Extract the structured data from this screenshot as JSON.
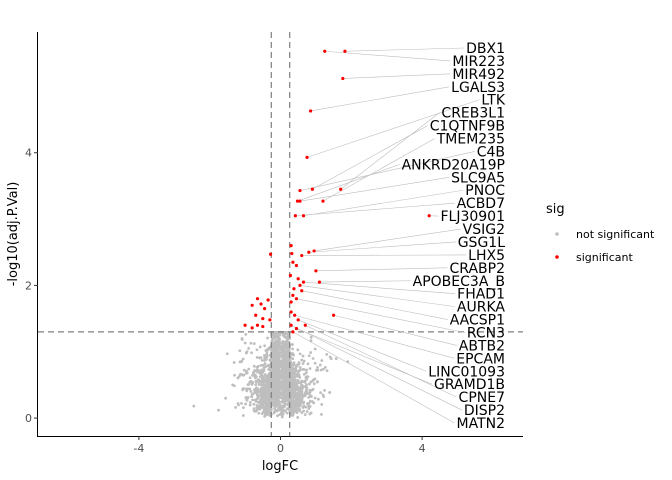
{
  "chart_data": {
    "type": "scatter",
    "title": "",
    "xlabel": "logFC",
    "ylabel": "-log10(adj.P.Val)",
    "xlim": [
      -6.85,
      6.85
    ],
    "ylim": [
      -0.27,
      5.82
    ],
    "x_ticks": [
      -4,
      0,
      4
    ],
    "y_ticks": [
      0,
      2,
      4
    ],
    "x_tick_labels": [
      "-4",
      "0",
      "4"
    ],
    "y_tick_labels": [
      "0",
      "2",
      "4"
    ],
    "grid": false,
    "reference_lines": {
      "vertical_x": [
        -0.26,
        0.26
      ],
      "horizontal_y": 1.3,
      "style": "dashed"
    },
    "legend": {
      "title": "sig",
      "placement": "right",
      "entries": [
        {
          "label": "not significant",
          "color": "#bebebe"
        },
        {
          "label": "significant",
          "color": "#ff0000"
        }
      ]
    },
    "series": [
      {
        "name": "significant",
        "color": "#ff0000",
        "points": [
          [
            1.25,
            5.53
          ],
          [
            1.82,
            5.53
          ],
          [
            1.76,
            5.12
          ],
          [
            0.85,
            4.63
          ],
          [
            0.75,
            3.93
          ],
          [
            1.7,
            3.45
          ],
          [
            0.9,
            3.45
          ],
          [
            0.55,
            3.43
          ],
          [
            1.2,
            3.27
          ],
          [
            0.48,
            3.27
          ],
          [
            0.55,
            3.27
          ],
          [
            0.65,
            3.05
          ],
          [
            0.42,
            3.05
          ],
          [
            4.2,
            3.05
          ],
          [
            0.3,
            2.6
          ],
          [
            0.32,
            2.48
          ],
          [
            0.95,
            2.52
          ],
          [
            0.8,
            2.5
          ],
          [
            0.6,
            2.45
          ],
          [
            -0.28,
            2.47
          ],
          [
            0.35,
            2.35
          ],
          [
            1.0,
            2.22
          ],
          [
            0.45,
            2.3
          ],
          [
            0.28,
            2.15
          ],
          [
            0.5,
            2.1
          ],
          [
            1.1,
            2.05
          ],
          [
            0.65,
            2.05
          ],
          [
            0.55,
            2.0
          ],
          [
            0.38,
            1.95
          ],
          [
            0.35,
            1.85
          ],
          [
            0.6,
            1.92
          ],
          [
            0.45,
            1.8
          ],
          [
            0.3,
            1.75
          ],
          [
            0.3,
            1.6
          ],
          [
            0.4,
            1.55
          ],
          [
            0.5,
            1.48
          ],
          [
            0.3,
            1.4
          ],
          [
            0.45,
            1.35
          ],
          [
            1.5,
            1.55
          ],
          [
            0.7,
            1.4
          ],
          [
            0.35,
            1.3
          ],
          [
            -0.55,
            1.72
          ],
          [
            -0.65,
            1.8
          ],
          [
            -0.35,
            1.78
          ],
          [
            -0.8,
            1.7
          ],
          [
            -0.45,
            1.65
          ],
          [
            -0.7,
            1.55
          ],
          [
            -0.5,
            1.5
          ],
          [
            -0.3,
            1.48
          ],
          [
            -0.65,
            1.4
          ],
          [
            -0.5,
            1.38
          ],
          [
            -1.0,
            1.4
          ],
          [
            -0.8,
            1.36
          ]
        ]
      },
      {
        "name": "not significant",
        "color": "#bebebe",
        "points": []
      }
    ],
    "gene_labels": [
      {
        "label": "DBX1",
        "point": [
          1.82,
          5.53
        ]
      },
      {
        "label": "MIR223",
        "point": [
          1.25,
          5.53
        ]
      },
      {
        "label": "MIR492",
        "point": [
          1.76,
          5.12
        ]
      },
      {
        "label": "LGALS3",
        "point": [
          0.85,
          4.63
        ]
      },
      {
        "label": "LTK",
        "point": [
          0.75,
          3.93
        ]
      },
      {
        "label": "CREB3L1",
        "point": [
          1.7,
          3.45
        ]
      },
      {
        "label": "C1QTNF9B",
        "point": [
          0.9,
          3.45
        ]
      },
      {
        "label": "TMEM235",
        "point": [
          1.2,
          3.27
        ]
      },
      {
        "label": "C4B",
        "point": [
          0.55,
          3.43
        ]
      },
      {
        "label": "ANKRD20A19P",
        "point": [
          0.48,
          3.27
        ]
      },
      {
        "label": "SLC9A5",
        "point": [
          0.55,
          3.27
        ]
      },
      {
        "label": "PNOC",
        "point": [
          0.65,
          3.05
        ]
      },
      {
        "label": "ACBD7",
        "point": [
          0.42,
          3.05
        ]
      },
      {
        "label": "FLJ30901",
        "point": [
          4.2,
          3.05
        ]
      },
      {
        "label": "VSIG2",
        "point": [
          0.95,
          2.52
        ]
      },
      {
        "label": "GSG1L",
        "point": [
          0.8,
          2.5
        ]
      },
      {
        "label": "LHX5",
        "point": [
          0.6,
          2.45
        ]
      },
      {
        "label": "CRABP2",
        "point": [
          1.0,
          2.22
        ]
      },
      {
        "label": "APOBEC3A_B",
        "point": [
          1.1,
          2.05
        ]
      },
      {
        "label": "FHAD1",
        "point": [
          0.65,
          2.05
        ]
      },
      {
        "label": "AURKA",
        "point": [
          0.55,
          2.0
        ]
      },
      {
        "label": "AACSP1",
        "point": [
          0.6,
          1.92
        ]
      },
      {
        "label": "RCN3",
        "point": [
          0.45,
          1.8
        ]
      },
      {
        "label": "ABTB2",
        "point": [
          1.5,
          1.55
        ]
      },
      {
        "label": "EPCAM",
        "point": [
          0.4,
          1.55
        ]
      },
      {
        "label": "LINC01093",
        "point": [
          0.5,
          1.48
        ]
      },
      {
        "label": "GRAMD1B",
        "point": [
          0.45,
          1.35
        ]
      },
      {
        "label": "CPNE7",
        "point": [
          0.7,
          1.4
        ]
      },
      {
        "label": "DISP2",
        "point": [
          0.3,
          1.4
        ]
      },
      {
        "label": "MATN2",
        "point": [
          0.35,
          1.3
        ]
      }
    ]
  }
}
